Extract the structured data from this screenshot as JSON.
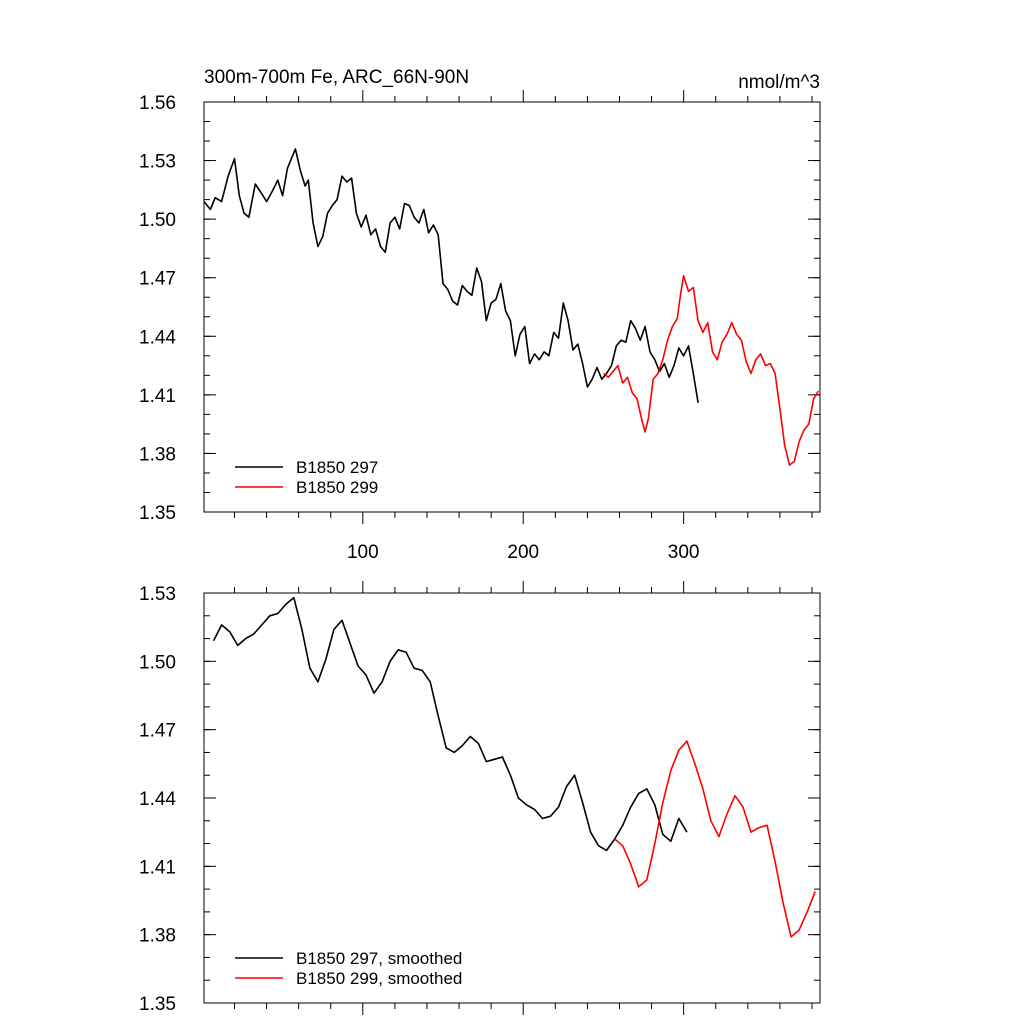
{
  "chart_data": [
    {
      "type": "line",
      "title": "300m-700m Fe, ARC_66N-90N",
      "units": "nmol/m^3",
      "xlabel": "",
      "ylabel": "",
      "xlim": [
        1,
        385
      ],
      "ylim": [
        1.35,
        1.56
      ],
      "xticks": [
        100,
        200,
        300
      ],
      "xtick_labels": [
        "100",
        "200",
        "300"
      ],
      "yticks": [
        1.35,
        1.38,
        1.41,
        1.44,
        1.47,
        1.5,
        1.53,
        1.56
      ],
      "ytick_labels": [
        "1.35",
        "1.38",
        "1.41",
        "1.44",
        "1.47",
        "1.50",
        "1.53",
        "1.56"
      ],
      "legend_position": "bottom-left",
      "series": [
        {
          "name": "B1850 297",
          "color": "#000000",
          "x": [
            1,
            5,
            8,
            12,
            16,
            20,
            23,
            26,
            29,
            33,
            37,
            40,
            44,
            47,
            50,
            53,
            56,
            58,
            61,
            64,
            66,
            69,
            72,
            75,
            78,
            81,
            84,
            87,
            90,
            93,
            96,
            99,
            102,
            105,
            108,
            111,
            114,
            117,
            120,
            123,
            126,
            129,
            132,
            135,
            138,
            141,
            144,
            147,
            150,
            153,
            156,
            159,
            162,
            165,
            168,
            171,
            174,
            177,
            180,
            183,
            186,
            189,
            192,
            195,
            198,
            201,
            204,
            207,
            210,
            213,
            216,
            219,
            222,
            225,
            228,
            231,
            234,
            237,
            240,
            243,
            246,
            249,
            252,
            255,
            258,
            261,
            264,
            267,
            270,
            273,
            276,
            279,
            282,
            285,
            288,
            291,
            294,
            297,
            300,
            303,
            306,
            309
          ],
          "values": [
            1.509,
            1.505,
            1.511,
            1.509,
            1.522,
            1.531,
            1.512,
            1.503,
            1.501,
            1.518,
            1.513,
            1.509,
            1.515,
            1.52,
            1.512,
            1.526,
            1.532,
            1.536,
            1.525,
            1.517,
            1.52,
            1.498,
            1.486,
            1.491,
            1.503,
            1.507,
            1.51,
            1.522,
            1.519,
            1.521,
            1.503,
            1.496,
            1.502,
            1.492,
            1.495,
            1.486,
            1.483,
            1.498,
            1.501,
            1.495,
            1.508,
            1.507,
            1.501,
            1.498,
            1.505,
            1.493,
            1.497,
            1.492,
            1.467,
            1.464,
            1.458,
            1.456,
            1.466,
            1.463,
            1.461,
            1.475,
            1.468,
            1.448,
            1.457,
            1.459,
            1.467,
            1.453,
            1.448,
            1.43,
            1.441,
            1.445,
            1.426,
            1.431,
            1.428,
            1.432,
            1.43,
            1.442,
            1.439,
            1.457,
            1.448,
            1.433,
            1.436,
            1.426,
            1.414,
            1.418,
            1.424,
            1.418,
            1.421,
            1.425,
            1.435,
            1.438,
            1.437,
            1.448,
            1.444,
            1.438,
            1.445,
            1.432,
            1.428,
            1.422,
            1.426,
            1.419,
            1.425,
            1.434,
            1.43,
            1.435,
            1.421,
            1.406
          ]
        },
        {
          "name": "B1850 299",
          "color": "#ff0000",
          "x": [
            250,
            253,
            256,
            259,
            262,
            265,
            268,
            271,
            274,
            276,
            278,
            281,
            284,
            287,
            290,
            293,
            296,
            298,
            300,
            303,
            306,
            309,
            312,
            315,
            318,
            321,
            324,
            327,
            330,
            333,
            336,
            339,
            342,
            345,
            348,
            351,
            354,
            357,
            360,
            363,
            366,
            369,
            372,
            375,
            378,
            381,
            384
          ],
          "values": [
            1.421,
            1.419,
            1.422,
            1.425,
            1.416,
            1.419,
            1.411,
            1.408,
            1.397,
            1.391,
            1.398,
            1.418,
            1.421,
            1.428,
            1.438,
            1.445,
            1.449,
            1.461,
            1.471,
            1.463,
            1.465,
            1.448,
            1.442,
            1.447,
            1.432,
            1.428,
            1.437,
            1.441,
            1.447,
            1.441,
            1.438,
            1.427,
            1.421,
            1.428,
            1.431,
            1.425,
            1.426,
            1.421,
            1.403,
            1.384,
            1.374,
            1.376,
            1.386,
            1.392,
            1.395,
            1.408,
            1.412
          ]
        }
      ]
    },
    {
      "type": "line",
      "title": "",
      "xlabel": "",
      "ylabel": "",
      "xlim": [
        1,
        385
      ],
      "ylim": [
        1.35,
        1.53
      ],
      "xticks": [
        100,
        200,
        300
      ],
      "xtick_labels": [
        "",
        "",
        ""
      ],
      "yticks": [
        1.35,
        1.38,
        1.41,
        1.44,
        1.47,
        1.5,
        1.53
      ],
      "ytick_labels": [
        "1.35",
        "1.38",
        "1.41",
        "1.44",
        "1.47",
        "1.50",
        "1.53"
      ],
      "legend_position": "bottom-left",
      "series": [
        {
          "name": "B1850 297, smoothed",
          "color": "#000000",
          "x": [
            7,
            12,
            17,
            22,
            27,
            32,
            37,
            42,
            47,
            52,
            57,
            62,
            67,
            72,
            77,
            82,
            87,
            92,
            97,
            102,
            107,
            112,
            117,
            122,
            127,
            132,
            137,
            142,
            147,
            152,
            157,
            162,
            167,
            172,
            177,
            182,
            187,
            192,
            197,
            202,
            207,
            212,
            217,
            222,
            227,
            232,
            237,
            242,
            247,
            252,
            257,
            262,
            267,
            272,
            277,
            282,
            287,
            292,
            297,
            302
          ],
          "values": [
            1.509,
            1.516,
            1.513,
            1.507,
            1.51,
            1.512,
            1.516,
            1.52,
            1.521,
            1.525,
            1.528,
            1.514,
            1.497,
            1.491,
            1.501,
            1.514,
            1.518,
            1.508,
            1.498,
            1.494,
            1.486,
            1.491,
            1.5,
            1.505,
            1.504,
            1.497,
            1.496,
            1.491,
            1.476,
            1.462,
            1.46,
            1.463,
            1.467,
            1.464,
            1.456,
            1.457,
            1.458,
            1.45,
            1.44,
            1.437,
            1.435,
            1.431,
            1.432,
            1.436,
            1.445,
            1.45,
            1.438,
            1.425,
            1.419,
            1.417,
            1.422,
            1.428,
            1.436,
            1.442,
            1.444,
            1.437,
            1.424,
            1.421,
            1.431,
            1.425
          ]
        },
        {
          "name": "B1850 299, smoothed",
          "color": "#ff0000",
          "x": [
            257,
            262,
            267,
            272,
            277,
            282,
            287,
            292,
            297,
            302,
            307,
            312,
            317,
            322,
            327,
            332,
            337,
            342,
            347,
            352,
            357,
            362,
            367,
            372,
            377,
            382
          ],
          "values": [
            1.422,
            1.419,
            1.411,
            1.401,
            1.404,
            1.42,
            1.438,
            1.452,
            1.461,
            1.465,
            1.455,
            1.444,
            1.43,
            1.423,
            1.433,
            1.441,
            1.436,
            1.425,
            1.427,
            1.428,
            1.412,
            1.394,
            1.379,
            1.382,
            1.39,
            1.399
          ]
        }
      ]
    }
  ]
}
